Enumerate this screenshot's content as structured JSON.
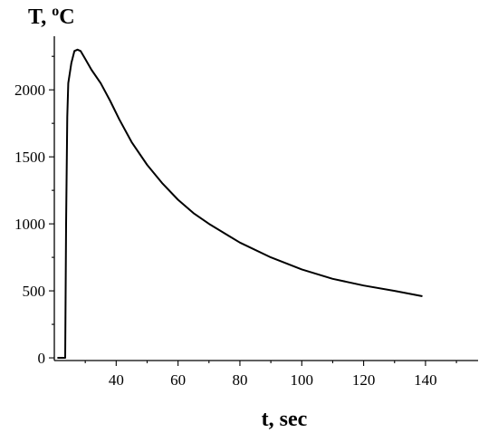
{
  "chart_data": {
    "type": "line",
    "title": "",
    "ylabel": {
      "base": "T, ",
      "sup": "o",
      "unit": "C"
    },
    "xlabel": "t, sec",
    "xlim": [
      20,
      157
    ],
    "ylim": [
      -20,
      2400
    ],
    "x_ticks": [
      40,
      60,
      80,
      100,
      120,
      140
    ],
    "y_ticks": [
      0,
      500,
      1000,
      1500,
      2000
    ],
    "grid": false,
    "series": [
      {
        "name": "",
        "points": [
          [
            21.0,
            0
          ],
          [
            23.5,
            0
          ],
          [
            23.8,
            1000
          ],
          [
            24.2,
            1800
          ],
          [
            24.5,
            2050
          ],
          [
            25.5,
            2200
          ],
          [
            26.5,
            2290
          ],
          [
            27.5,
            2300
          ],
          [
            28.5,
            2290
          ],
          [
            30,
            2230
          ],
          [
            32,
            2150
          ],
          [
            35,
            2050
          ],
          [
            38,
            1920
          ],
          [
            41,
            1780
          ],
          [
            45,
            1610
          ],
          [
            50,
            1440
          ],
          [
            55,
            1300
          ],
          [
            60,
            1180
          ],
          [
            65,
            1080
          ],
          [
            70,
            1000
          ],
          [
            75,
            930
          ],
          [
            80,
            860
          ],
          [
            90,
            750
          ],
          [
            100,
            660
          ],
          [
            110,
            590
          ],
          [
            120,
            540
          ],
          [
            130,
            500
          ],
          [
            139,
            460
          ]
        ]
      }
    ]
  }
}
